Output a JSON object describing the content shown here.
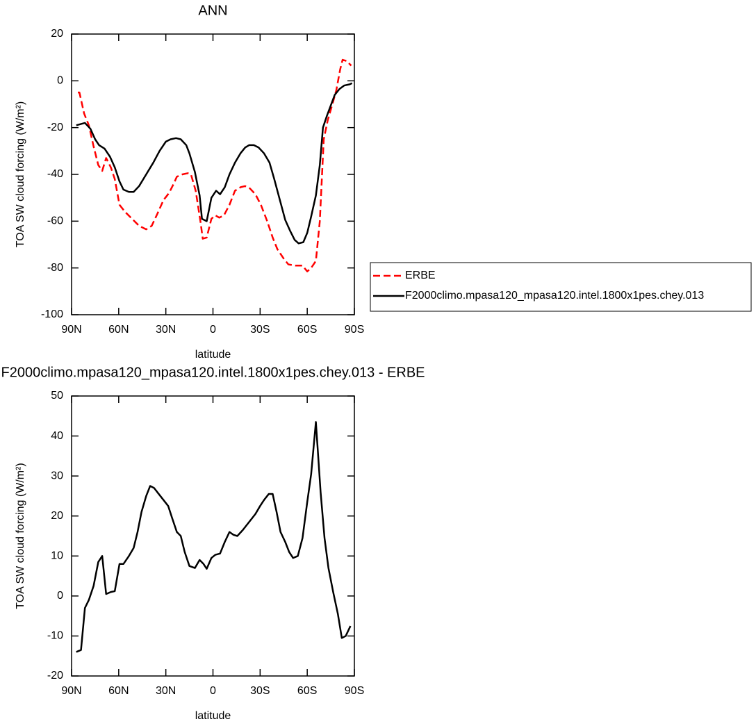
{
  "chart_data": [
    {
      "type": "line",
      "title": "ANN",
      "xlabel": "latitude",
      "ylabel": "TOA SW cloud forcing (W/m²)",
      "xlim": [
        90,
        -90
      ],
      "xticks": [
        {
          "value": 90,
          "label": "90N"
        },
        {
          "value": 60,
          "label": "60N"
        },
        {
          "value": 30,
          "label": "30N"
        },
        0,
        {
          "value": -30,
          "label": "30S"
        },
        {
          "value": -60,
          "label": "60S"
        },
        {
          "value": -90,
          "label": "90S"
        }
      ],
      "ylim": [
        -100,
        20
      ],
      "yticks": [
        -100,
        -80,
        -60,
        -40,
        -20,
        0,
        20
      ],
      "legend": "right",
      "series": [
        {
          "name": "ERBE",
          "color": "#ff0000",
          "dashed": true,
          "x": [
            86,
            85,
            82,
            79,
            76,
            73,
            70.5,
            68,
            65,
            62.5,
            59.5,
            56,
            51.5,
            47,
            42.5,
            39,
            35.5,
            31.5,
            28,
            25,
            23,
            19.5,
            16,
            14,
            11,
            8,
            6.5,
            4,
            1,
            -1.5,
            -4,
            -7,
            -10.5,
            -14,
            -17.5,
            -20.5,
            -23.5,
            -27,
            -30.5,
            -34.5,
            -38,
            -41,
            -45,
            -48,
            -52.5,
            -57,
            -60,
            -62.5,
            -65.5,
            -68,
            -70.5,
            -73,
            -76,
            -78.5,
            -81,
            -82.5,
            -85,
            -88
          ],
          "values": [
            -5,
            -5,
            -14,
            -19,
            -28,
            -36,
            -38.5,
            -33,
            -37,
            -42,
            -53,
            -56,
            -59,
            -62,
            -63.5,
            -62,
            -57,
            -51,
            -48,
            -44,
            -41,
            -40,
            -39.5,
            -40,
            -47,
            -60,
            -67.5,
            -67,
            -59,
            -57.5,
            -58.5,
            -57.5,
            -53,
            -47,
            -45.5,
            -45,
            -46,
            -48.5,
            -53,
            -60,
            -67,
            -72,
            -76,
            -78.5,
            -79,
            -79,
            -81.5,
            -80,
            -77,
            -60,
            -25,
            -17,
            -10,
            -4,
            5,
            9,
            8.5,
            6.5
          ]
        },
        {
          "name": "F2000climo.mpasa120_mpasa120.intel.1800x1pes.chey.013",
          "color": "#000000",
          "dashed": false,
          "x": [
            87,
            81.5,
            78,
            75,
            72.5,
            69,
            65.5,
            62.5,
            59.5,
            57,
            53.5,
            50.5,
            47,
            42.5,
            38,
            34,
            30,
            27,
            23.5,
            20.5,
            17,
            15,
            11.5,
            8.5,
            7,
            4,
            1,
            -2,
            -4.5,
            -7.5,
            -10.5,
            -14,
            -17.5,
            -20.5,
            -23,
            -26,
            -29,
            -32.5,
            -36,
            -39,
            -43,
            -46,
            -49,
            -52,
            -54.5,
            -57.5,
            -60,
            -62.5,
            -65.5,
            -68,
            -70,
            -72.5,
            -75,
            -77.5,
            -80.5,
            -83.5,
            -87,
            -88.5
          ],
          "values": [
            -19,
            -18,
            -20.5,
            -25,
            -27.5,
            -29,
            -32.5,
            -37,
            -43,
            -46.5,
            -47.5,
            -47.5,
            -45,
            -40,
            -35,
            -30,
            -26,
            -25,
            -24.5,
            -25,
            -27.5,
            -31,
            -39,
            -49,
            -59,
            -60,
            -50,
            -47,
            -48.5,
            -45.5,
            -40,
            -35,
            -31,
            -28.5,
            -27.5,
            -27.5,
            -28.5,
            -31,
            -35,
            -42,
            -52,
            -59.5,
            -64,
            -68,
            -69.5,
            -69,
            -65,
            -58,
            -49,
            -36,
            -20,
            -15,
            -10.5,
            -6,
            -3.5,
            -2,
            -1.5,
            -1
          ]
        }
      ]
    },
    {
      "type": "line",
      "title": "F2000climo.mpasa120_mpasa120.intel.1800x1pes.chey.013 - ERBE",
      "xlabel": "latitude",
      "ylabel": "TOA SW cloud forcing (W/m²)",
      "xlim": [
        90,
        -90
      ],
      "xticks": [
        {
          "value": 90,
          "label": "90N"
        },
        {
          "value": 60,
          "label": "60N"
        },
        {
          "value": 30,
          "label": "30N"
        },
        0,
        {
          "value": -30,
          "label": "30S"
        },
        {
          "value": -60,
          "label": "60S"
        },
        {
          "value": -90,
          "label": "90S"
        }
      ],
      "ylim": [
        -20,
        50
      ],
      "yticks": [
        -20,
        -10,
        0,
        10,
        20,
        30,
        40,
        50
      ],
      "series": [
        {
          "color": "#000000",
          "dashed": false,
          "x": [
            87,
            84,
            81.5,
            79,
            76,
            73,
            70.5,
            68,
            65,
            62.5,
            59.5,
            57,
            53.5,
            50.5,
            48,
            45.5,
            42.5,
            40,
            37.5,
            34.5,
            31.5,
            28.5,
            26,
            23,
            20.5,
            18,
            15,
            11.5,
            8.5,
            6,
            4,
            1,
            -1.5,
            -4.5,
            -7.5,
            -10.5,
            -13,
            -15.5,
            -19,
            -23,
            -27,
            -30,
            -32.5,
            -35.5,
            -38,
            -40.5,
            -43,
            -46,
            -48.5,
            -51,
            -54,
            -57,
            -60,
            -62.5,
            -65.5,
            -68.5,
            -71,
            -73.5,
            -76.5,
            -79.5,
            -82,
            -84.5,
            -87.5
          ],
          "values": [
            -14,
            -13.5,
            -3,
            -1,
            2.5,
            8.5,
            10,
            0.5,
            1,
            1.2,
            8,
            8,
            10,
            12,
            16,
            21,
            25,
            27.5,
            27,
            25.5,
            24,
            22.5,
            19.5,
            16,
            15,
            11,
            7.5,
            7,
            9,
            8,
            6.8,
            9.5,
            10.3,
            10.6,
            13.5,
            16,
            15.3,
            15,
            16.5,
            18.5,
            20.5,
            22.5,
            24,
            25.5,
            25.5,
            21,
            16,
            13.5,
            11,
            9.5,
            10,
            14.5,
            23.5,
            30.5,
            43.5,
            26,
            14.5,
            7,
            1,
            -4.5,
            -10.5,
            -10,
            -7.5
          ]
        }
      ]
    }
  ]
}
